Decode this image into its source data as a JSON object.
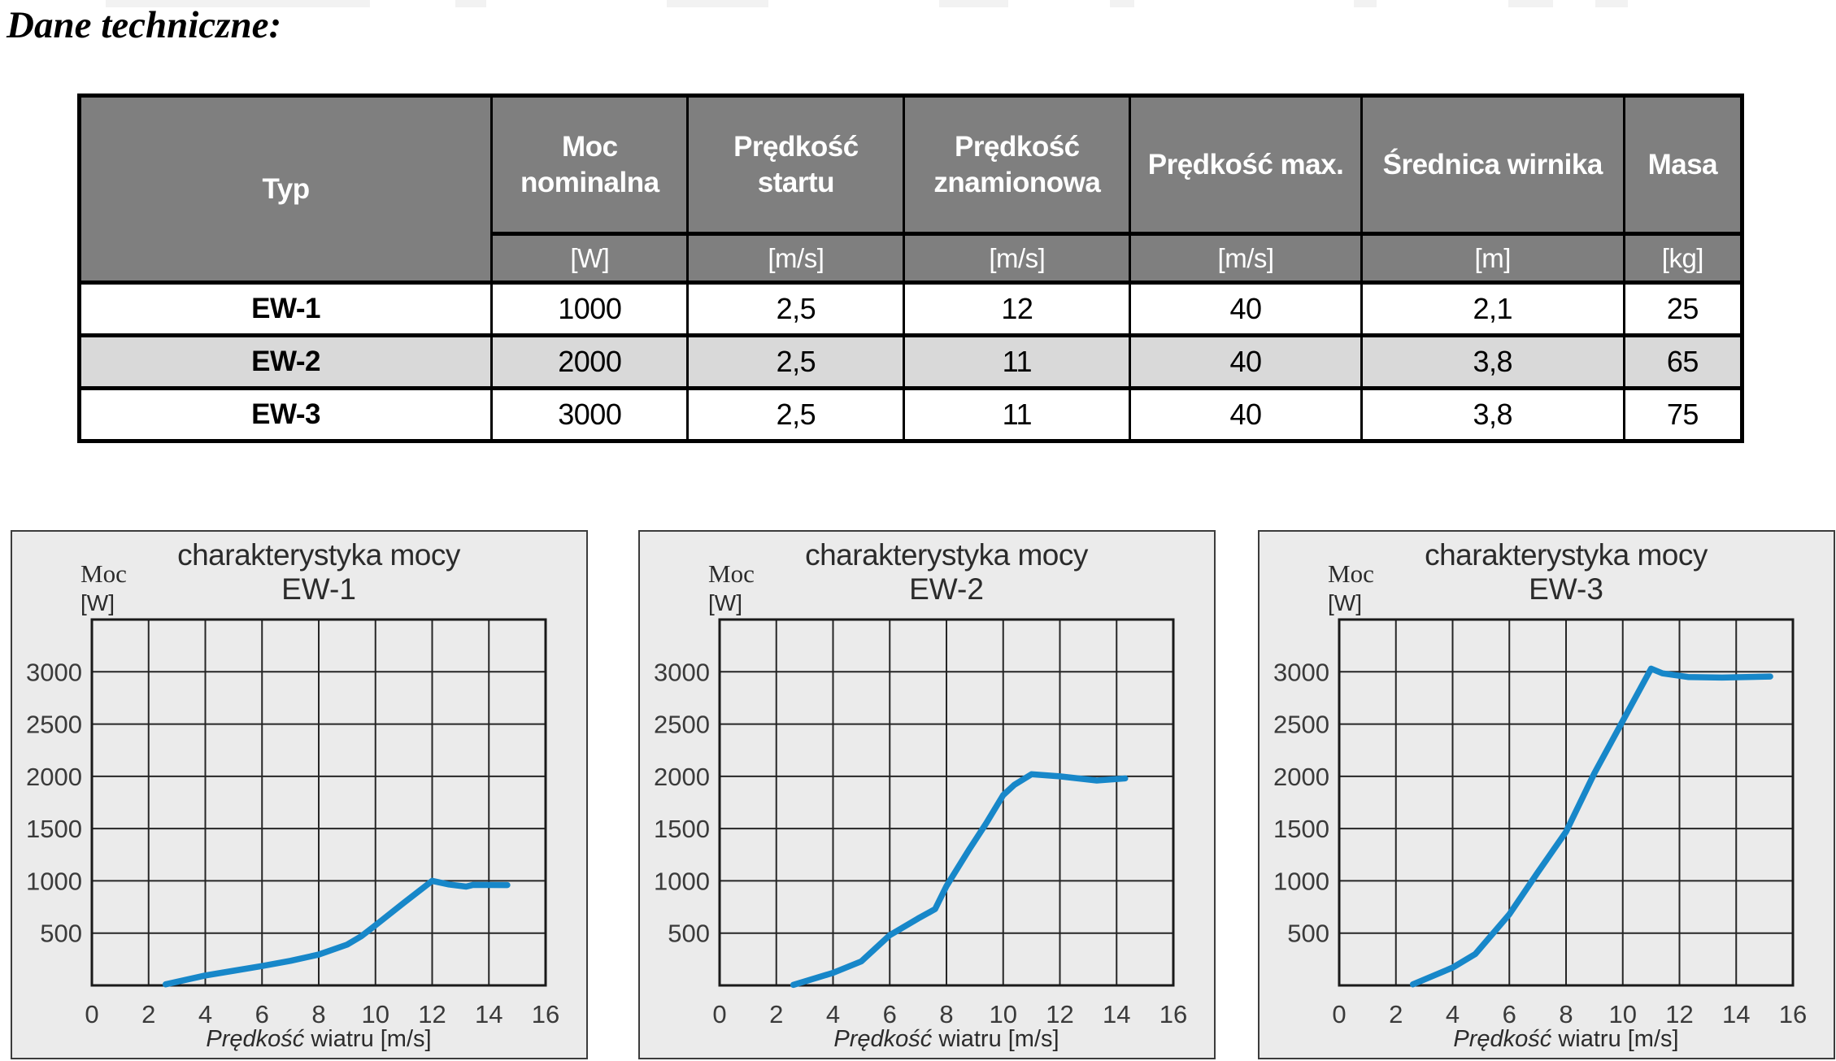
{
  "page": {
    "title": "Dane techniczne:"
  },
  "colors": {
    "header_gray": "#7f7f7f",
    "striped_row_gray": "#d9d9d9",
    "chart_background": "#ebebeb",
    "curve_blue": "#1787c9",
    "grid_black": "#262626"
  },
  "table": {
    "columns": [
      "Typ",
      "Moc nominalna",
      "Prędkość startu",
      "Prędkość znamionowa",
      "Prędkość max.",
      "Średnica wirnika",
      "Masa"
    ],
    "units": [
      "[W]",
      "[m/s]",
      "[m/s]",
      "[m/s]",
      "[m]",
      "[kg]"
    ],
    "rows": [
      {
        "typ": "EW-1",
        "cells": [
          "1000",
          "2,5",
          "12",
          "40",
          "2,1",
          "25"
        ]
      },
      {
        "typ": "EW-2",
        "cells": [
          "2000",
          "2,5",
          "11",
          "40",
          "3,8",
          "65"
        ]
      },
      {
        "typ": "EW-3",
        "cells": [
          "3000",
          "2,5",
          "11",
          "40",
          "3,8",
          "75"
        ]
      }
    ]
  },
  "chart_data": [
    {
      "type": "line",
      "title": "charakterystyka mocy",
      "subtitle": "EW-1",
      "ylabel_line1": "Moc",
      "ylabel_line2": "[W]",
      "xlabel_italic": "Prędkość",
      "xlabel_rest": " wiatru [m/s]",
      "xlim": [
        0,
        16
      ],
      "ylim": [
        0,
        3500
      ],
      "grid_step_y": 500,
      "xticks": [
        0,
        2,
        4,
        6,
        8,
        10,
        12,
        14,
        16
      ],
      "yticks": [
        500,
        1000,
        1500,
        2000,
        2500,
        3000
      ],
      "legend": "none",
      "grid": true,
      "line_color": "#1787c9",
      "points": [
        [
          2.6,
          10
        ],
        [
          4,
          95
        ],
        [
          5,
          140
        ],
        [
          6,
          185
        ],
        [
          7,
          235
        ],
        [
          8,
          295
        ],
        [
          9,
          390
        ],
        [
          9.5,
          470
        ],
        [
          10,
          575
        ],
        [
          11,
          790
        ],
        [
          12,
          1000
        ],
        [
          12.6,
          965
        ],
        [
          13.2,
          945
        ],
        [
          13.45,
          962
        ],
        [
          14.65,
          960
        ]
      ]
    },
    {
      "type": "line",
      "title": "charakterystyka mocy",
      "subtitle": "EW-2",
      "ylabel_line1": "Moc",
      "ylabel_line2": "[W]",
      "xlabel_italic": "Prędkość",
      "xlabel_rest": " wiatru [m/s]",
      "xlim": [
        0,
        16
      ],
      "ylim": [
        0,
        3500
      ],
      "grid_step_y": 500,
      "xticks": [
        0,
        2,
        4,
        6,
        8,
        10,
        12,
        14,
        16
      ],
      "yticks": [
        500,
        1000,
        1500,
        2000,
        2500,
        3000
      ],
      "legend": "none",
      "grid": true,
      "line_color": "#1787c9",
      "points": [
        [
          2.6,
          5
        ],
        [
          4,
          120
        ],
        [
          5,
          230
        ],
        [
          6,
          480
        ],
        [
          7,
          640
        ],
        [
          7.6,
          730
        ],
        [
          8,
          950
        ],
        [
          8.8,
          1300
        ],
        [
          9.4,
          1550
        ],
        [
          10,
          1820
        ],
        [
          10.4,
          1920
        ],
        [
          11,
          2020
        ],
        [
          12,
          2000
        ],
        [
          13.3,
          1960
        ],
        [
          14.3,
          1980
        ]
      ]
    },
    {
      "type": "line",
      "title": "charakterystyka mocy",
      "subtitle": "EW-3",
      "ylabel_line1": "Moc",
      "ylabel_line2": "[W]",
      "xlabel_italic": "Prędkość",
      "xlabel_rest": " wiatru [m/s]",
      "xlim": [
        0,
        16
      ],
      "ylim": [
        0,
        3500
      ],
      "grid_step_y": 500,
      "xticks": [
        0,
        2,
        4,
        6,
        8,
        10,
        12,
        14,
        16
      ],
      "yticks": [
        500,
        1000,
        1500,
        2000,
        2500,
        3000
      ],
      "legend": "none",
      "grid": true,
      "line_color": "#1787c9",
      "points": [
        [
          2.6,
          10
        ],
        [
          4,
          170
        ],
        [
          4.8,
          300
        ],
        [
          6,
          680
        ],
        [
          7,
          1080
        ],
        [
          8,
          1470
        ],
        [
          9,
          2030
        ],
        [
          10,
          2530
        ],
        [
          11,
          3030
        ],
        [
          11.4,
          2985
        ],
        [
          12.3,
          2950
        ],
        [
          13.5,
          2945
        ],
        [
          15.2,
          2955
        ]
      ]
    }
  ]
}
